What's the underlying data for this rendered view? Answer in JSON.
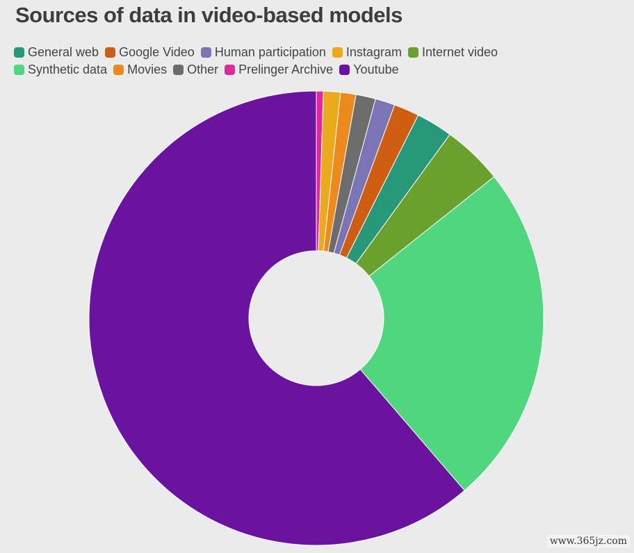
{
  "chart_data": {
    "type": "pie",
    "title": "Sources of data in video-based models",
    "legend_position": "top-left",
    "donut": true,
    "legend": [
      [
        "General web",
        "Google Video",
        "Human participation",
        "Instagram",
        "Internet video"
      ],
      [
        "Synthetic data",
        "Movies",
        "Other",
        "Prelinger Archive",
        "Youtube"
      ]
    ],
    "slices": [
      {
        "label": "Prelinger Archive",
        "value": 0.5,
        "color": "#e0289a"
      },
      {
        "label": "Instagram",
        "value": 1.2,
        "color": "#eaaa1c"
      },
      {
        "label": "Movies",
        "value": 1.1,
        "color": "#ec8a1e"
      },
      {
        "label": "Other",
        "value": 1.4,
        "color": "#6c6c6c"
      },
      {
        "label": "Human participation",
        "value": 1.4,
        "color": "#7b74b5"
      },
      {
        "label": "Google Video",
        "value": 1.8,
        "color": "#cf5e12"
      },
      {
        "label": "General web",
        "value": 2.6,
        "color": "#27987a"
      },
      {
        "label": "Internet video",
        "value": 4.3,
        "color": "#6aa02d"
      },
      {
        "label": "Synthetic data",
        "value": 24.4,
        "color": "#4fd67e"
      },
      {
        "label": "Youtube",
        "value": 61.3,
        "color": "#6a13a1"
      }
    ]
  },
  "watermark": "www.365jz.com"
}
